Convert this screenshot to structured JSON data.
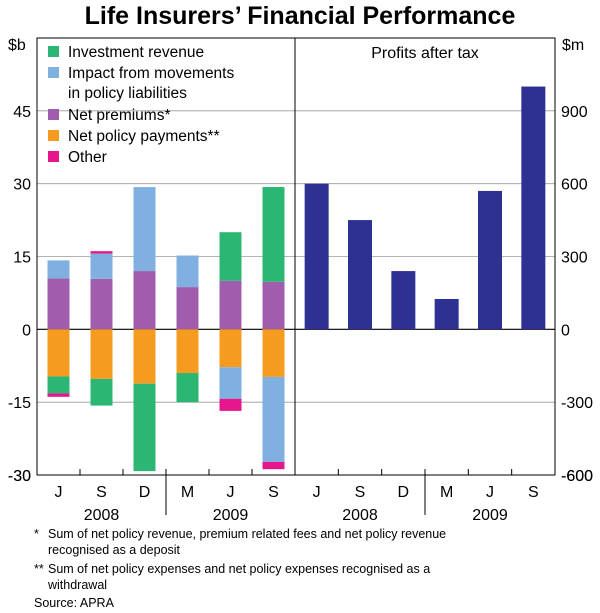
{
  "chart_data": {
    "type": "bar",
    "title": "Life Insurers’ Financial Performance",
    "panels": [
      {
        "name": "left",
        "stacked": true,
        "ylabel": "$b",
        "ylim": [
          -30,
          60
        ],
        "yticks": [
          -30,
          -15,
          0,
          15,
          30,
          45
        ],
        "categories": [
          "J",
          "S",
          "D",
          "M",
          "J",
          "S"
        ],
        "year_labels": [
          {
            "label": "2008",
            "span": [
              0,
              2
            ]
          },
          {
            "label": "2009",
            "span": [
              3,
              5
            ]
          }
        ],
        "series": [
          {
            "name": "Investment revenue",
            "color": "#2bb673",
            "values": [
              -3.5,
              -5.5,
              -18.0,
              -6.0,
              10.0,
              19.5
            ]
          },
          {
            "name": "Impact from movements in policy liabilities",
            "color": "#7fb0e0",
            "values": [
              3.7,
              5.2,
              17.3,
              6.5,
              -6.5,
              -17.5
            ]
          },
          {
            "name": "Net premiums*",
            "color": "#a05cad",
            "values": [
              10.5,
              10.4,
              12.0,
              8.7,
              10.0,
              9.8
            ]
          },
          {
            "name": "Net policy payments**",
            "color": "#f59c20",
            "values": [
              -9.7,
              -10.2,
              -11.2,
              -9.0,
              -7.8,
              -9.8
            ]
          },
          {
            "name": "Other",
            "color": "#e6178d",
            "values": [
              -0.7,
              0.5,
              0,
              0,
              -2.5,
              -1.5
            ]
          }
        ]
      },
      {
        "name": "right",
        "title": "Profits after tax",
        "ylabel": "$m",
        "ylim": [
          -600,
          1200
        ],
        "yticks": [
          -600,
          -300,
          0,
          300,
          600,
          900
        ],
        "categories": [
          "J",
          "S",
          "D",
          "M",
          "J",
          "S"
        ],
        "year_labels": [
          {
            "label": "2008",
            "span": [
              0,
              2
            ]
          },
          {
            "label": "2009",
            "span": [
              3,
              5
            ]
          }
        ],
        "series": [
          {
            "name": "Profits after tax",
            "color": "#2e3192",
            "values": [
              600,
              450,
              240,
              125,
              570,
              1000
            ]
          }
        ]
      }
    ]
  },
  "legend": {
    "items": [
      {
        "lines": [
          "Investment revenue"
        ],
        "color": "#2bb673"
      },
      {
        "lines": [
          "Impact from movements",
          "in policy liabilities"
        ],
        "color": "#7fb0e0"
      },
      {
        "lines": [
          "Net premiums*"
        ],
        "color": "#a05cad"
      },
      {
        "lines": [
          "Net policy payments**"
        ],
        "color": "#f59c20"
      },
      {
        "lines": [
          "Other"
        ],
        "color": "#e6178d"
      }
    ]
  },
  "footnotes": {
    "note1_marker": "*",
    "note1_line1": "Sum of net policy revenue, premium related fees and net policy revenue",
    "note1_line2": "recognised as a deposit",
    "note2_marker": "**",
    "note2_line1": "Sum of net policy expenses and net policy expenses recognised as a",
    "note2_line2": "withdrawal",
    "source": "Source: APRA"
  }
}
